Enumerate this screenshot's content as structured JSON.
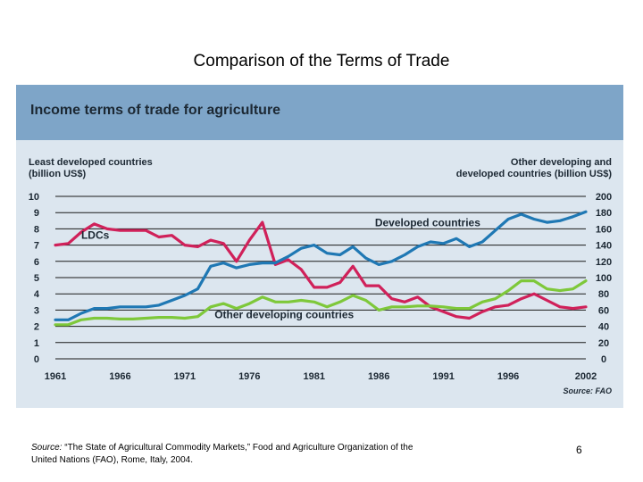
{
  "slide": {
    "title": "Comparison of the Terms of Trade",
    "source_label": "Source:",
    "source_text": " “The State of Agricultural Commodity Markets,” Food and Agriculture Organization of the United Nations (FAO), Rome, Italy, 2004.",
    "page_number": "6"
  },
  "colors": {
    "banner": "#7ea5c8",
    "panel": "#dce6ef",
    "ldcs": "#d0215a",
    "developed": "#1f78b4",
    "other_developing": "#7ec83a"
  },
  "chart_data": {
    "type": "line",
    "title": "Income terms of trade for agriculture",
    "left_axis_label": [
      "Least developed countries",
      "(billion US$)"
    ],
    "right_axis_label": [
      "Other developing and",
      "developed countries (billion US$)"
    ],
    "source": "Source: FAO",
    "ylim_left": [
      0,
      10
    ],
    "ylim_right": [
      0,
      200
    ],
    "yticks_left": [
      "0",
      "1",
      "2",
      "3",
      "4",
      "5",
      "6",
      "7",
      "8",
      "9",
      "10"
    ],
    "yticks_right": [
      "0",
      "20",
      "40",
      "60",
      "80",
      "100",
      "120",
      "140",
      "160",
      "180",
      "200"
    ],
    "xlim": [
      1961,
      2002
    ],
    "xticks": [
      "1961",
      "1966",
      "1971",
      "1976",
      "1981",
      "1986",
      "1991",
      "1996",
      "2002"
    ],
    "grid": true,
    "series": [
      {
        "name": "LDCs",
        "axis": "left",
        "color": "#d0215a",
        "x": [
          1961,
          1962,
          1963,
          1964,
          1965,
          1966,
          1967,
          1968,
          1969,
          1970,
          1971,
          1972,
          1973,
          1974,
          1975,
          1976,
          1977,
          1978,
          1979,
          1980,
          1981,
          1982,
          1983,
          1984,
          1985,
          1986,
          1987,
          1988,
          1989,
          1990,
          1991,
          1992,
          1993,
          1994,
          1995,
          1996,
          1997,
          1998,
          1999,
          2000,
          2001,
          2002
        ],
        "y": [
          7.0,
          7.1,
          7.8,
          8.3,
          8.0,
          7.9,
          7.9,
          7.9,
          7.5,
          7.6,
          7.0,
          6.9,
          7.3,
          7.1,
          6.0,
          7.3,
          8.4,
          5.8,
          6.1,
          5.5,
          4.4,
          4.4,
          4.7,
          5.7,
          4.5,
          4.5,
          3.7,
          3.5,
          3.8,
          3.2,
          2.9,
          2.6,
          2.5,
          2.9,
          3.2,
          3.3,
          3.7,
          4.0,
          3.6,
          3.2,
          3.1,
          3.2
        ]
      },
      {
        "name": "Developed countries",
        "axis": "right",
        "color": "#1f78b4",
        "x": [
          1961,
          1962,
          1963,
          1964,
          1965,
          1966,
          1967,
          1968,
          1969,
          1970,
          1971,
          1972,
          1973,
          1974,
          1975,
          1976,
          1977,
          1978,
          1979,
          1980,
          1981,
          1982,
          1983,
          1984,
          1985,
          1986,
          1987,
          1988,
          1989,
          1990,
          1991,
          1992,
          1993,
          1994,
          1995,
          1996,
          1997,
          1998,
          1999,
          2000,
          2001,
          2002
        ],
        "y": [
          48,
          48,
          56,
          62,
          62,
          64,
          64,
          64,
          66,
          72,
          78,
          86,
          114,
          118,
          112,
          116,
          118,
          118,
          126,
          136,
          140,
          130,
          128,
          138,
          124,
          116,
          120,
          128,
          138,
          144,
          142,
          148,
          138,
          144,
          158,
          172,
          178,
          172,
          168,
          170,
          175,
          181
        ]
      },
      {
        "name": "Other developing countries",
        "axis": "right",
        "color": "#7ec83a",
        "x": [
          1961,
          1962,
          1963,
          1964,
          1965,
          1966,
          1967,
          1968,
          1969,
          1970,
          1971,
          1972,
          1973,
          1974,
          1975,
          1976,
          1977,
          1978,
          1979,
          1980,
          1981,
          1982,
          1983,
          1984,
          1985,
          1986,
          1987,
          1988,
          1989,
          1990,
          1991,
          1992,
          1993,
          1994,
          1995,
          1996,
          1997,
          1998,
          1999,
          2000,
          2001,
          2002
        ],
        "y": [
          42,
          42,
          48,
          50,
          50,
          49,
          49,
          50,
          51,
          51,
          50,
          52,
          64,
          68,
          62,
          68,
          76,
          70,
          70,
          72,
          70,
          64,
          70,
          78,
          72,
          60,
          64,
          64,
          65,
          65,
          64,
          62,
          62,
          70,
          74,
          84,
          96,
          96,
          86,
          84,
          86,
          96
        ]
      }
    ],
    "annotations": [
      "LDCs",
      "Developed countries",
      "Other developing countries"
    ]
  }
}
